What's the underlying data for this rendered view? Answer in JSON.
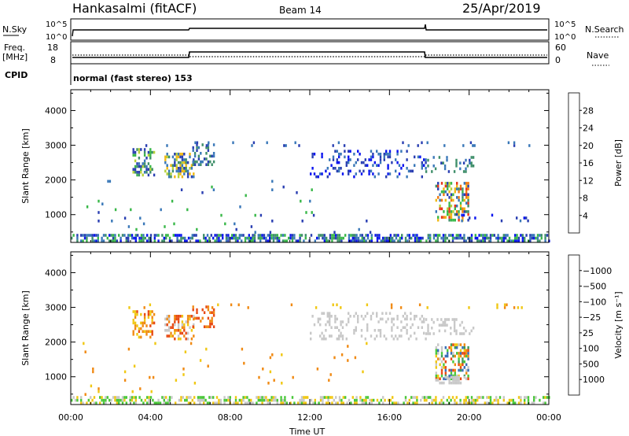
{
  "header": {
    "station": "Hankasalmi (fitACF)",
    "beam": "Beam 14",
    "date": "25/Apr/2019"
  },
  "param_panels": {
    "nsky_label": "N.Sky",
    "nsky_ticks": [
      "10^5",
      "10^0"
    ],
    "nsearch_label": "N.Search",
    "nsearch_ticks": [
      "10^5",
      "10^0"
    ],
    "freq_label_line1": "Freq.",
    "freq_label_line2": "[MHz]",
    "freq_ticks": [
      "18",
      "8"
    ],
    "nave_label": "Nave",
    "nave_ticks": [
      "60",
      "0"
    ],
    "cpid_label": "CPID",
    "cpid_text": "normal (fast stereo) 153"
  },
  "chart_data": [
    {
      "type": "heatmap",
      "name": "power",
      "ylabel": "Slant Range [km]",
      "ylim": [
        200,
        4600
      ],
      "yticks": [
        1000,
        2000,
        3000,
        4000
      ],
      "yticklabels": [
        "1000",
        "2000",
        "3000",
        "4000"
      ],
      "xlim": [
        0,
        24
      ],
      "colorbar": {
        "label": "Power [dB]",
        "tick_labels": [
          "4",
          "8",
          "12",
          "16",
          "20",
          "24",
          "28"
        ],
        "colors": [
          "#0a14f0",
          "#2a3fb2",
          "#3a78b8",
          "#3f8f6a",
          "#3ab84a",
          "#b6d13a",
          "#f0b814",
          "#f07a14",
          "#e8361a",
          "#e01414"
        ]
      },
      "regions": [
        {
          "t0": 0.0,
          "t1": 24.0,
          "r0": 200,
          "r1": 420,
          "density": 0.6,
          "colors": [
            0,
            1,
            2,
            3,
            4
          ]
        },
        {
          "t0": 3.1,
          "t1": 4.2,
          "r0": 2100,
          "r1": 2850,
          "density": 0.45,
          "colors": [
            1,
            2,
            3,
            4,
            5
          ]
        },
        {
          "t0": 4.7,
          "t1": 6.2,
          "r0": 2050,
          "r1": 2750,
          "density": 0.5,
          "colors": [
            1,
            2,
            3,
            5,
            6
          ]
        },
        {
          "t0": 6.1,
          "t1": 7.2,
          "r0": 2400,
          "r1": 3050,
          "density": 0.35,
          "colors": [
            1,
            2,
            3
          ]
        },
        {
          "t0": 12.0,
          "t1": 17.8,
          "r0": 2050,
          "r1": 2850,
          "density": 0.22,
          "colors": [
            0,
            1,
            2
          ]
        },
        {
          "t0": 17.8,
          "t1": 20.2,
          "r0": 2200,
          "r1": 2650,
          "density": 0.25,
          "colors": [
            1,
            2,
            3
          ]
        },
        {
          "t0": 18.3,
          "t1": 20.0,
          "r0": 800,
          "r1": 1900,
          "density": 0.5,
          "colors": [
            1,
            2,
            3,
            4,
            5,
            6,
            7,
            8
          ]
        },
        {
          "t0": 1.0,
          "t1": 23.5,
          "r0": 2950,
          "r1": 3050,
          "density": 0.08,
          "colors": [
            1,
            2
          ]
        },
        {
          "t0": 19.5,
          "t1": 23.0,
          "r0": 780,
          "r1": 1000,
          "density": 0.12,
          "colors": [
            0,
            1,
            2
          ]
        },
        {
          "t0": 0.5,
          "t1": 15.0,
          "r0": 450,
          "r1": 2000,
          "density": 0.015,
          "colors": [
            1,
            2,
            4
          ]
        }
      ]
    },
    {
      "type": "heatmap",
      "name": "velocity",
      "ylabel": "Slant Range [km]",
      "xlabel": "Time UT",
      "ylim": [
        200,
        4600
      ],
      "yticks": [
        1000,
        2000,
        3000,
        4000
      ],
      "yticklabels": [
        "1000",
        "2000",
        "3000",
        "4000"
      ],
      "xlim": [
        0,
        24
      ],
      "xticks": [
        0,
        4,
        8,
        12,
        16,
        20,
        24
      ],
      "xticklabels": [
        "00:00",
        "04:00",
        "08:00",
        "12:00",
        "16:00",
        "20:00",
        "00:00"
      ],
      "colorbar": {
        "label": "Velocity [m s⁻¹]",
        "tick_labels": [
          "1000",
          "500",
          "100",
          "25",
          "−25",
          "−100",
          "−500",
          "−1000"
        ],
        "colors": [
          "#2a3fc8",
          "#3a6fb8",
          "#3f9a5a",
          "#4ac83a",
          "#c8c8c8",
          "#c8c8c8",
          "#f0c814",
          "#f08a14",
          "#e84a14",
          "#e01414"
        ]
      },
      "regions": [
        {
          "t0": 0.0,
          "t1": 24.0,
          "r0": 200,
          "r1": 420,
          "density": 0.5,
          "colors": [
            3,
            4,
            6
          ]
        },
        {
          "t0": 3.1,
          "t1": 4.2,
          "r0": 2100,
          "r1": 2850,
          "density": 0.45,
          "colors": [
            6,
            7,
            8
          ]
        },
        {
          "t0": 4.7,
          "t1": 6.2,
          "r0": 2050,
          "r1": 2750,
          "density": 0.5,
          "colors": [
            6,
            7,
            8,
            4
          ]
        },
        {
          "t0": 6.1,
          "t1": 7.2,
          "r0": 2400,
          "r1": 3050,
          "density": 0.3,
          "colors": [
            7,
            8
          ]
        },
        {
          "t0": 12.0,
          "t1": 17.8,
          "r0": 2050,
          "r1": 2850,
          "density": 0.22,
          "colors": [
            4,
            5
          ]
        },
        {
          "t0": 17.8,
          "t1": 20.2,
          "r0": 2200,
          "r1": 2650,
          "density": 0.25,
          "colors": [
            4,
            5
          ]
        },
        {
          "t0": 18.3,
          "t1": 20.0,
          "r0": 900,
          "r1": 1900,
          "density": 0.5,
          "colors": [
            1,
            2,
            3,
            4,
            6,
            7,
            8
          ]
        },
        {
          "t0": 18.3,
          "t1": 19.8,
          "r0": 780,
          "r1": 950,
          "density": 0.55,
          "colors": [
            4
          ]
        },
        {
          "t0": 1.0,
          "t1": 23.5,
          "r0": 2950,
          "r1": 3050,
          "density": 0.06,
          "colors": [
            6,
            7
          ]
        },
        {
          "t0": 0.5,
          "t1": 15.0,
          "r0": 450,
          "r1": 2000,
          "density": 0.012,
          "colors": [
            6,
            7
          ]
        }
      ]
    }
  ]
}
